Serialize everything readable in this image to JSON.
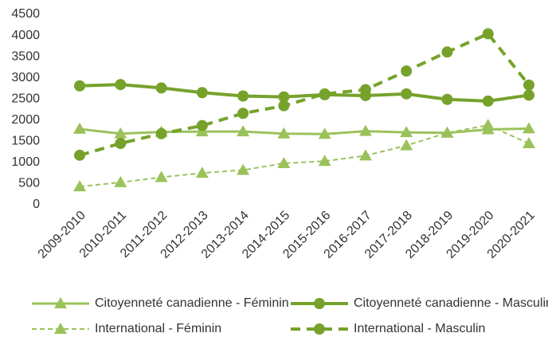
{
  "chart_data": {
    "type": "line",
    "categories": [
      "2009-2010",
      "2010-2011",
      "2011-2012",
      "2012-2013",
      "2013-2014",
      "2014-2015",
      "2015-2016",
      "2016-2017",
      "2017-2018",
      "2018-2019",
      "2019-2020",
      "2020-2021"
    ],
    "series": [
      {
        "name": "Citoyenneté canadienne - Féminin",
        "color": "#9bc25a",
        "dash": false,
        "marker": "triangle",
        "width": 3,
        "values": [
          1790,
          1680,
          1720,
          1730,
          1730,
          1680,
          1670,
          1740,
          1710,
          1700,
          1780,
          1800
        ]
      },
      {
        "name": "Citoyenneté canadienne - Masculin",
        "color": "#76a22b",
        "dash": false,
        "marker": "circle",
        "width": 4,
        "values": [
          2810,
          2840,
          2760,
          2650,
          2570,
          2550,
          2600,
          2580,
          2620,
          2490,
          2450,
          2590
        ]
      },
      {
        "name": "International - Féminin",
        "color": "#9bc25a",
        "dash": true,
        "marker": "triangle",
        "width": 2,
        "values": [
          430,
          530,
          650,
          750,
          820,
          980,
          1030,
          1160,
          1400,
          1700,
          1880,
          1450
        ]
      },
      {
        "name": "International - Masculin",
        "color": "#76a22b",
        "dash": true,
        "marker": "circle",
        "width": 4,
        "values": [
          1170,
          1450,
          1680,
          1870,
          2160,
          2340,
          2620,
          2720,
          3160,
          3610,
          4040,
          2830
        ]
      }
    ],
    "ylim": [
      0,
      4500
    ],
    "yticks": [
      0,
      500,
      1000,
      1500,
      2000,
      2500,
      3000,
      3500,
      4000,
      4500
    ],
    "grid": false,
    "legend": "bottom"
  }
}
